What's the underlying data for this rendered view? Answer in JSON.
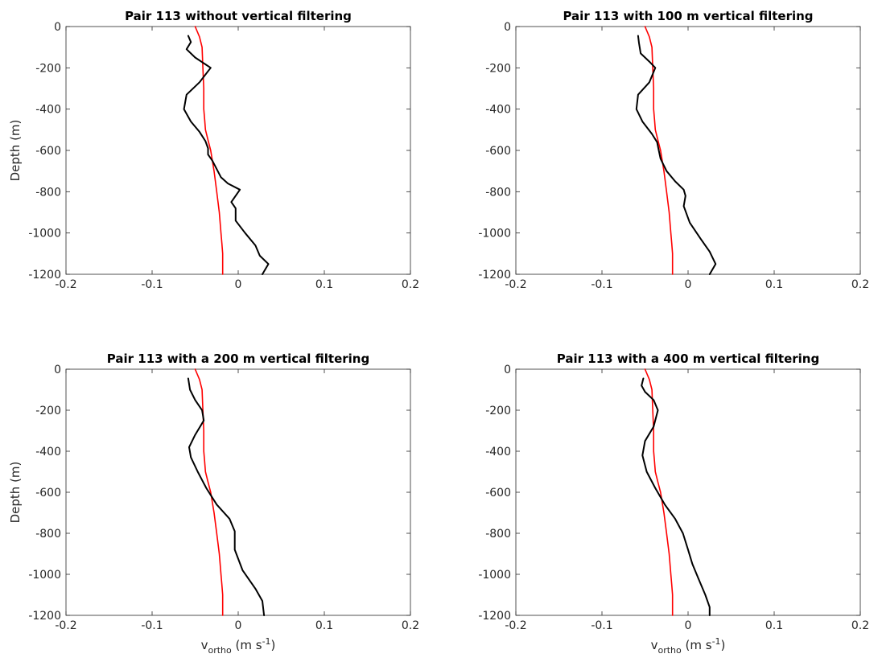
{
  "chart_data": [
    {
      "type": "line",
      "title": "Pair 113 without vertical filtering",
      "xlabel": "",
      "ylabel": "Depth (m)",
      "xlim": [
        -0.2,
        0.2
      ],
      "ylim": [
        -1200,
        0
      ],
      "xticks": [
        "-0.2",
        "-0.1",
        "0",
        "0.1",
        "0.2"
      ],
      "yticks": [
        "0",
        "-200",
        "-400",
        "-600",
        "-800",
        "-1000",
        "-1200"
      ],
      "grid": false,
      "series": [
        {
          "color": "#ff0000",
          "x": [
            -0.05,
            -0.045,
            -0.042,
            -0.041,
            -0.04,
            -0.04,
            -0.039,
            -0.038,
            -0.035,
            -0.032,
            -0.028,
            -0.025,
            -0.022,
            -0.02,
            -0.019,
            -0.018,
            -0.018,
            -0.018,
            -0.018
          ],
          "y": [
            0,
            -50,
            -100,
            -200,
            -300,
            -400,
            -450,
            -500,
            -550,
            -600,
            -700,
            -800,
            -900,
            -1000,
            -1050,
            -1100,
            -1150,
            -1180,
            -1200
          ]
        },
        {
          "color": "#000000",
          "x": [
            -0.058,
            -0.055,
            -0.06,
            -0.05,
            -0.032,
            -0.045,
            -0.06,
            -0.063,
            -0.055,
            -0.045,
            -0.038,
            -0.035,
            -0.035,
            -0.03,
            -0.02,
            -0.012,
            0.002,
            -0.008,
            -0.003,
            -0.003,
            0.008,
            0.02,
            0.025,
            0.035,
            0.028
          ],
          "y": [
            -45,
            -75,
            -110,
            -150,
            -200,
            -270,
            -330,
            -400,
            -460,
            -510,
            -555,
            -590,
            -620,
            -650,
            -730,
            -760,
            -790,
            -850,
            -880,
            -940,
            -1000,
            -1060,
            -1110,
            -1150,
            -1200
          ]
        }
      ]
    },
    {
      "type": "line",
      "title": "Pair 113 with 100 m vertical filtering",
      "xlabel": "",
      "ylabel": "",
      "xlim": [
        -0.2,
        0.2
      ],
      "ylim": [
        -1200,
        0
      ],
      "xticks": [
        "-0.2",
        "-0.1",
        "0",
        "0.1",
        "0.2"
      ],
      "yticks": [
        "0",
        "-200",
        "-400",
        "-600",
        "-800",
        "-1000",
        "-1200"
      ],
      "grid": false,
      "series": [
        {
          "color": "#ff0000",
          "x": [
            -0.05,
            -0.045,
            -0.042,
            -0.041,
            -0.04,
            -0.04,
            -0.039,
            -0.038,
            -0.035,
            -0.032,
            -0.028,
            -0.025,
            -0.022,
            -0.02,
            -0.019,
            -0.018,
            -0.018,
            -0.018,
            -0.018
          ],
          "y": [
            0,
            -50,
            -100,
            -200,
            -300,
            -400,
            -450,
            -500,
            -550,
            -600,
            -700,
            -800,
            -900,
            -1000,
            -1050,
            -1100,
            -1150,
            -1180,
            -1200
          ]
        },
        {
          "color": "#000000",
          "x": [
            -0.058,
            -0.057,
            -0.055,
            -0.045,
            -0.038,
            -0.045,
            -0.058,
            -0.06,
            -0.053,
            -0.042,
            -0.036,
            -0.034,
            -0.032,
            -0.025,
            -0.015,
            -0.005,
            -0.003,
            -0.005,
            0.002,
            0.015,
            0.025,
            0.032,
            0.025
          ],
          "y": [
            -45,
            -80,
            -130,
            -170,
            -200,
            -270,
            -330,
            -400,
            -460,
            -520,
            -560,
            -600,
            -640,
            -700,
            -750,
            -790,
            -820,
            -870,
            -950,
            -1030,
            -1090,
            -1150,
            -1200
          ]
        }
      ]
    },
    {
      "type": "line",
      "title": "Pair 113 with a 200 m vertical filtering",
      "xlabel": "v_ortho (m s^-1)",
      "ylabel": "Depth (m)",
      "xlim": [
        -0.2,
        0.2
      ],
      "ylim": [
        -1200,
        0
      ],
      "xticks": [
        "-0.2",
        "-0.1",
        "0",
        "0.1",
        "0.2"
      ],
      "yticks": [
        "0",
        "-200",
        "-400",
        "-600",
        "-800",
        "-1000",
        "-1200"
      ],
      "grid": false,
      "series": [
        {
          "color": "#ff0000",
          "x": [
            -0.05,
            -0.045,
            -0.042,
            -0.041,
            -0.04,
            -0.04,
            -0.039,
            -0.038,
            -0.035,
            -0.032,
            -0.028,
            -0.025,
            -0.022,
            -0.02,
            -0.019,
            -0.018,
            -0.018,
            -0.018,
            -0.018
          ],
          "y": [
            0,
            -50,
            -100,
            -200,
            -300,
            -400,
            -450,
            -500,
            -550,
            -600,
            -700,
            -800,
            -900,
            -1000,
            -1050,
            -1100,
            -1150,
            -1180,
            -1200
          ]
        },
        {
          "color": "#000000",
          "x": [
            -0.058,
            -0.056,
            -0.05,
            -0.042,
            -0.04,
            -0.05,
            -0.057,
            -0.055,
            -0.047,
            -0.037,
            -0.025,
            -0.01,
            -0.004,
            -0.004,
            0.005,
            0.02,
            0.028,
            0.03
          ],
          "y": [
            -45,
            -100,
            -150,
            -200,
            -250,
            -320,
            -380,
            -430,
            -500,
            -580,
            -660,
            -730,
            -790,
            -880,
            -980,
            -1070,
            -1130,
            -1200
          ]
        }
      ]
    },
    {
      "type": "line",
      "title": "Pair 113 with a 400 m vertical filtering",
      "xlabel": "v_ortho (m s^-1)",
      "ylabel": "",
      "xlim": [
        -0.2,
        0.2
      ],
      "ylim": [
        -1200,
        0
      ],
      "xticks": [
        "-0.2",
        "-0.1",
        "0",
        "0.1",
        "0.2"
      ],
      "yticks": [
        "0",
        "-200",
        "-400",
        "-600",
        "-800",
        "-1000",
        "-1200"
      ],
      "grid": false,
      "series": [
        {
          "color": "#ff0000",
          "x": [
            -0.05,
            -0.045,
            -0.042,
            -0.041,
            -0.04,
            -0.04,
            -0.039,
            -0.038,
            -0.035,
            -0.032,
            -0.028,
            -0.025,
            -0.022,
            -0.02,
            -0.019,
            -0.018,
            -0.018,
            -0.018,
            -0.018
          ],
          "y": [
            0,
            -50,
            -100,
            -200,
            -300,
            -400,
            -450,
            -500,
            -550,
            -600,
            -700,
            -800,
            -900,
            -1000,
            -1050,
            -1100,
            -1150,
            -1180,
            -1200
          ]
        },
        {
          "color": "#000000",
          "x": [
            -0.052,
            -0.054,
            -0.05,
            -0.04,
            -0.035,
            -0.04,
            -0.05,
            -0.053,
            -0.048,
            -0.038,
            -0.027,
            -0.015,
            -0.006,
            0.0,
            0.005,
            0.012,
            0.02,
            0.025,
            0.025
          ],
          "y": [
            -45,
            -80,
            -110,
            -150,
            -200,
            -280,
            -350,
            -420,
            -500,
            -580,
            -660,
            -730,
            -800,
            -880,
            -950,
            -1020,
            -1100,
            -1160,
            -1200
          ]
        }
      ]
    }
  ]
}
